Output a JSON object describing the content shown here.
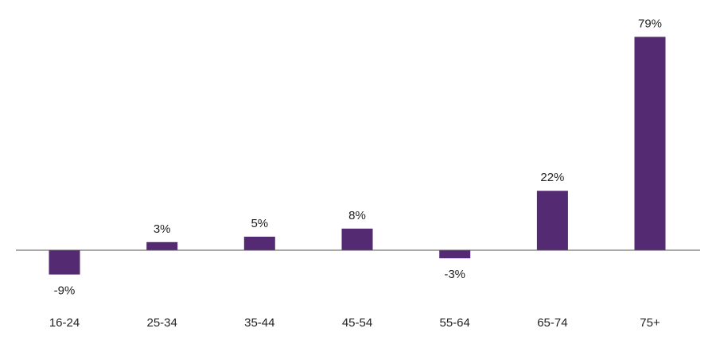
{
  "chart_data": {
    "type": "bar",
    "categories": [
      "16-24",
      "25-34",
      "35-44",
      "45-54",
      "55-64",
      "65-74",
      "75+"
    ],
    "values": [
      -9,
      3,
      5,
      8,
      -3,
      22,
      79
    ],
    "value_labels": [
      "-9%",
      "3%",
      "5%",
      "8%",
      "-3%",
      "22%",
      "79%"
    ],
    "unit": "%",
    "title": "",
    "xlabel": "",
    "ylabel": "",
    "ylim": [
      -11,
      81
    ],
    "grid": false,
    "legend": "none",
    "bar_color": "#542A72",
    "axis_color": "#555555"
  }
}
